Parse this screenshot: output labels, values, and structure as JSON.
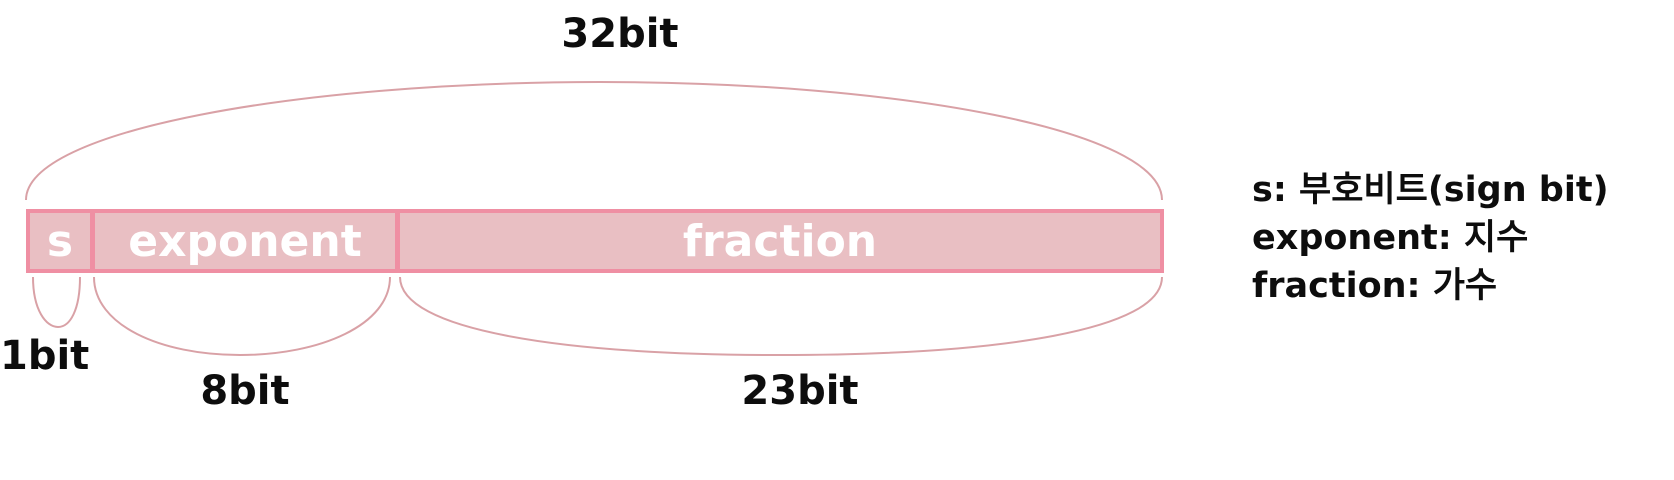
{
  "total": {
    "label": "32bit"
  },
  "fields": {
    "sign": {
      "label": "s",
      "bits_label": "1bit",
      "bits": 1
    },
    "exponent": {
      "label": "exponent",
      "bits_label": "8bit",
      "bits": 8
    },
    "fraction": {
      "label": "fraction",
      "bits_label": "23bit",
      "bits": 23
    }
  },
  "legend": [
    "s: 부호비트(sign bit)",
    "exponent: 지수",
    "fraction: 가수"
  ],
  "colors": {
    "field_fill": "#e9bfc3",
    "field_border": "#ef8fa3",
    "brace": "#d9a1a6",
    "text": "#0d0d0d"
  }
}
